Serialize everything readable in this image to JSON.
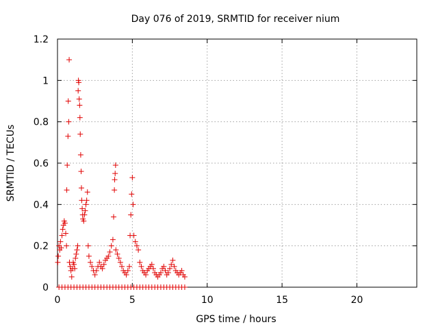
{
  "chart_data": {
    "type": "scatter",
    "title": "Day 076 of 2019, SRMTID for receiver nium",
    "xlabel": "GPS time / hours",
    "ylabel": "SRMTID / TECUs",
    "xlim": [
      0,
      24
    ],
    "ylim": [
      0,
      1.2
    ],
    "x_ticks": [
      0,
      5,
      10,
      15,
      20
    ],
    "x_tick_labels": [
      "0",
      "5",
      "10",
      "15",
      "20"
    ],
    "y_ticks": [
      0,
      0.2,
      0.4,
      0.6,
      0.8,
      1.0,
      1.2
    ],
    "y_tick_labels": [
      "0",
      "0.2",
      "0.4",
      "0.6",
      "0.8",
      "1",
      "1.2"
    ],
    "grid": true,
    "marker": "+",
    "series_color": "#e00000",
    "series": [
      {
        "name": "SRMTID",
        "points": [
          [
            0.02,
            0.12
          ],
          [
            0.05,
            0.15
          ],
          [
            0.1,
            0.2
          ],
          [
            0.15,
            0.18
          ],
          [
            0.2,
            0.22
          ],
          [
            0.25,
            0.19
          ],
          [
            0.3,
            0.25
          ],
          [
            0.35,
            0.28
          ],
          [
            0.4,
            0.3
          ],
          [
            0.45,
            0.32
          ],
          [
            0.5,
            0.31
          ],
          [
            0.55,
            0.26
          ],
          [
            0.6,
            0.2
          ],
          [
            0.62,
            0.47
          ],
          [
            0.65,
            0.59
          ],
          [
            0.7,
            0.73
          ],
          [
            0.72,
            0.9
          ],
          [
            0.75,
            0.8
          ],
          [
            0.78,
            1.1
          ],
          [
            0.8,
            0.12
          ],
          [
            0.85,
            0.1
          ],
          [
            0.9,
            0.08
          ],
          [
            0.95,
            0.05
          ],
          [
            1.0,
            0.09
          ],
          [
            1.05,
            0.12
          ],
          [
            1.1,
            0.11
          ],
          [
            1.15,
            0.09
          ],
          [
            1.2,
            0.14
          ],
          [
            1.25,
            0.16
          ],
          [
            1.3,
            0.18
          ],
          [
            1.35,
            0.2
          ],
          [
            1.38,
            0.95
          ],
          [
            1.4,
            1.0
          ],
          [
            1.42,
            0.99
          ],
          [
            1.45,
            0.91
          ],
          [
            1.48,
            0.88
          ],
          [
            1.5,
            0.82
          ],
          [
            1.52,
            0.74
          ],
          [
            1.55,
            0.64
          ],
          [
            1.58,
            0.56
          ],
          [
            1.6,
            0.48
          ],
          [
            1.62,
            0.42
          ],
          [
            1.65,
            0.38
          ],
          [
            1.68,
            0.35
          ],
          [
            1.7,
            0.33
          ],
          [
            1.75,
            0.32
          ],
          [
            1.8,
            0.35
          ],
          [
            1.85,
            0.37
          ],
          [
            1.9,
            0.4
          ],
          [
            1.95,
            0.42
          ],
          [
            2.0,
            0.46
          ],
          [
            2.05,
            0.2
          ],
          [
            2.1,
            0.15
          ],
          [
            2.2,
            0.12
          ],
          [
            2.3,
            0.1
          ],
          [
            2.4,
            0.08
          ],
          [
            2.5,
            0.06
          ],
          [
            2.6,
            0.08
          ],
          [
            2.7,
            0.1
          ],
          [
            2.8,
            0.12
          ],
          [
            2.9,
            0.1
          ],
          [
            3.0,
            0.09
          ],
          [
            3.1,
            0.11
          ],
          [
            3.2,
            0.13
          ],
          [
            3.3,
            0.14
          ],
          [
            3.4,
            0.15
          ],
          [
            3.5,
            0.17
          ],
          [
            3.6,
            0.2
          ],
          [
            3.7,
            0.23
          ],
          [
            3.75,
            0.34
          ],
          [
            3.8,
            0.47
          ],
          [
            3.82,
            0.52
          ],
          [
            3.85,
            0.55
          ],
          [
            3.88,
            0.59
          ],
          [
            3.9,
            0.18
          ],
          [
            4.0,
            0.16
          ],
          [
            4.1,
            0.14
          ],
          [
            4.2,
            0.12
          ],
          [
            4.3,
            0.1
          ],
          [
            4.4,
            0.08
          ],
          [
            4.5,
            0.07
          ],
          [
            4.6,
            0.06
          ],
          [
            4.7,
            0.08
          ],
          [
            4.8,
            0.1
          ],
          [
            4.85,
            0.25
          ],
          [
            4.9,
            0.35
          ],
          [
            4.95,
            0.45
          ],
          [
            5.0,
            0.53
          ],
          [
            5.05,
            0.4
          ],
          [
            5.1,
            0.25
          ],
          [
            5.2,
            0.22
          ],
          [
            5.3,
            0.2
          ],
          [
            5.4,
            0.18
          ],
          [
            5.5,
            0.12
          ],
          [
            5.6,
            0.1
          ],
          [
            5.7,
            0.08
          ],
          [
            5.8,
            0.07
          ],
          [
            5.9,
            0.06
          ],
          [
            6.0,
            0.08
          ],
          [
            6.1,
            0.09
          ],
          [
            6.2,
            0.1
          ],
          [
            6.3,
            0.11
          ],
          [
            6.4,
            0.09
          ],
          [
            6.5,
            0.07
          ],
          [
            6.6,
            0.06
          ],
          [
            6.7,
            0.05
          ],
          [
            6.8,
            0.06
          ],
          [
            6.9,
            0.07
          ],
          [
            7.0,
            0.09
          ],
          [
            7.1,
            0.1
          ],
          [
            7.2,
            0.08
          ],
          [
            7.3,
            0.06
          ],
          [
            7.4,
            0.07
          ],
          [
            7.5,
            0.09
          ],
          [
            7.6,
            0.11
          ],
          [
            7.7,
            0.13
          ],
          [
            7.8,
            0.1
          ],
          [
            7.9,
            0.08
          ],
          [
            8.0,
            0.07
          ],
          [
            8.1,
            0.06
          ],
          [
            8.2,
            0.07
          ],
          [
            8.3,
            0.08
          ],
          [
            8.4,
            0.06
          ],
          [
            8.5,
            0.05
          ],
          [
            0.1,
            0.0
          ],
          [
            0.3,
            0.0
          ],
          [
            0.5,
            0.0
          ],
          [
            0.7,
            0.0
          ],
          [
            0.9,
            0.0
          ],
          [
            1.1,
            0.0
          ],
          [
            1.3,
            0.0
          ],
          [
            1.5,
            0.0
          ],
          [
            1.7,
            0.0
          ],
          [
            1.9,
            0.0
          ],
          [
            2.1,
            0.0
          ],
          [
            2.3,
            0.0
          ],
          [
            2.5,
            0.0
          ],
          [
            2.7,
            0.0
          ],
          [
            2.9,
            0.0
          ],
          [
            3.1,
            0.0
          ],
          [
            3.3,
            0.0
          ],
          [
            3.5,
            0.0
          ],
          [
            3.7,
            0.0
          ],
          [
            3.9,
            0.0
          ],
          [
            4.1,
            0.0
          ],
          [
            4.3,
            0.0
          ],
          [
            4.5,
            0.0
          ],
          [
            4.7,
            0.0
          ],
          [
            4.9,
            0.0
          ],
          [
            5.1,
            0.0
          ],
          [
            5.3,
            0.0
          ],
          [
            5.5,
            0.0
          ],
          [
            5.7,
            0.0
          ],
          [
            5.9,
            0.0
          ],
          [
            6.1,
            0.0
          ],
          [
            6.3,
            0.0
          ],
          [
            6.5,
            0.0
          ],
          [
            6.7,
            0.0
          ],
          [
            6.9,
            0.0
          ],
          [
            7.1,
            0.0
          ],
          [
            7.3,
            0.0
          ],
          [
            7.5,
            0.0
          ],
          [
            7.7,
            0.0
          ],
          [
            7.9,
            0.0
          ],
          [
            8.1,
            0.0
          ],
          [
            8.3,
            0.0
          ],
          [
            8.5,
            0.0
          ]
        ]
      }
    ]
  }
}
